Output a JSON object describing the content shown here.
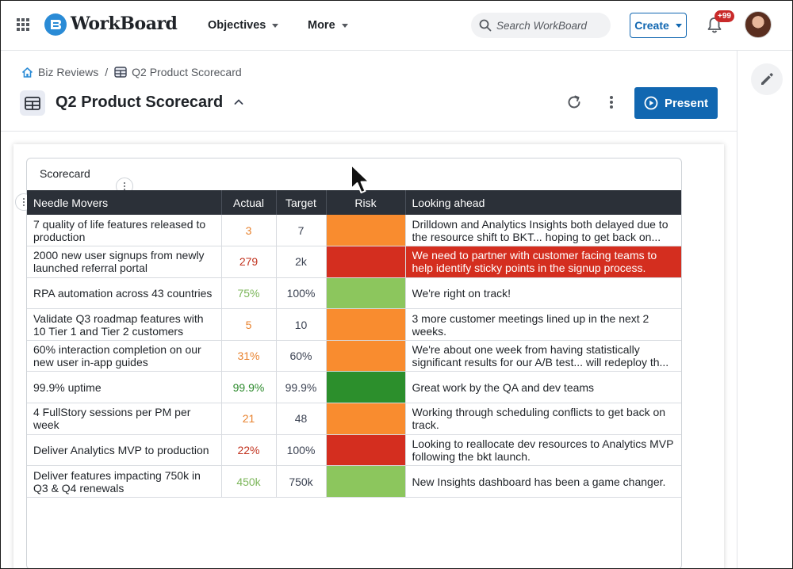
{
  "app": {
    "name": "WorkBoard",
    "nav": [
      {
        "label": "Objectives"
      },
      {
        "label": "More"
      }
    ],
    "search_placeholder": "Search WorkBoard",
    "create_label": "Create",
    "notification_count": "+99"
  },
  "breadcrumb": {
    "root": "Biz Reviews",
    "separator": "/",
    "current": "Q2 Product Scorecard"
  },
  "page": {
    "title": "Q2 Product Scorecard",
    "present_label": "Present"
  },
  "widget": {
    "title": "Scorecard",
    "columns": [
      "Needle Movers",
      "Actual",
      "Target",
      "Risk",
      "Looking ahead"
    ],
    "rows": [
      {
        "mover": "7 quality of life features released to production",
        "actual": "3",
        "actual_color": "#e8822e",
        "target": "7",
        "risk_color": "#f98c2f",
        "look": "Drilldown and Analytics Insights both delayed due to the resource shift to BKT... hoping to get back on...",
        "look_red": false
      },
      {
        "mover": "2000 new user signups from newly launched referral portal",
        "actual": "279",
        "actual_color": "#c2331f",
        "target": "2k",
        "risk_color": "#d42e1f",
        "look": "We need to partner with customer facing teams to help identify sticky points in the signup process.",
        "look_red": true
      },
      {
        "mover": "RPA automation across 43 countries",
        "actual": "75%",
        "actual_color": "#7cb65a",
        "target": "100%",
        "risk_color": "#8cc65d",
        "look": "We're right on track!",
        "look_red": false
      },
      {
        "mover": "Validate Q3 roadmap features with 10 Tier 1 and Tier 2 customers",
        "actual": "5",
        "actual_color": "#e8822e",
        "target": "10",
        "risk_color": "#f98c2f",
        "look": "3 more customer meetings lined up in the next 2 weeks.",
        "look_red": false
      },
      {
        "mover": "60% interaction completion on our new user in-app guides",
        "actual": "31%",
        "actual_color": "#e8822e",
        "target": "60%",
        "risk_color": "#f98c2f",
        "look": "We're about one week from having statistically significant results for our A/B test... will redeploy th...",
        "look_red": false
      },
      {
        "mover": "99.9% uptime",
        "actual": "99.9%",
        "actual_color": "#2e8b2e",
        "target": "99.9%",
        "risk_color": "#2c8f2c",
        "look": "Great work by the QA and dev teams",
        "look_red": false
      },
      {
        "mover": "4 FullStory sessions per PM per week",
        "actual": "21",
        "actual_color": "#e8822e",
        "target": "48",
        "risk_color": "#f98c2f",
        "look": "Working through scheduling conflicts to get back on track.",
        "look_red": false
      },
      {
        "mover": "Deliver Analytics MVP to production",
        "actual": "22%",
        "actual_color": "#c2331f",
        "target": "100%",
        "risk_color": "#d42e1f",
        "look": "Looking to reallocate dev resources to Analytics MVP following the bkt launch.",
        "look_red": false
      },
      {
        "mover": "Deliver features impacting 750k in Q3 & Q4 renewals",
        "actual": "450k",
        "actual_color": "#7cb65a",
        "target": "750k",
        "risk_color": "#8cc65d",
        "look": "New Insights dashboard has been a game changer.",
        "look_red": false
      }
    ]
  }
}
